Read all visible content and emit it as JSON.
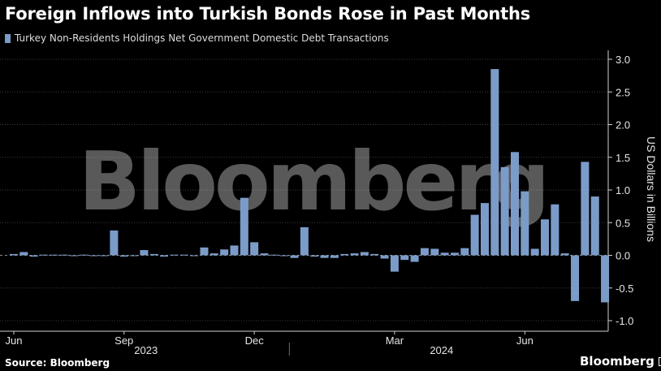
{
  "title": "Foreign Inflows into Turkish Bonds Rose in Past Months",
  "legend": {
    "label": "Turkey Non-Residents Holdings Net Government Domestic Debt Transactions",
    "color": "#7b9cc8"
  },
  "footer": {
    "source": "Source: Bloomberg"
  },
  "brand": {
    "name": "Bloomberg",
    "watermark": "Bloomberg"
  },
  "chart_data": {
    "type": "bar",
    "ylabel": "US Dollars in Billions",
    "ylim": [
      -1.0,
      3.0
    ],
    "yticks": [
      3.0,
      2.5,
      2.0,
      1.5,
      1.0,
      0.5,
      0.0,
      -0.5,
      -1.0
    ],
    "ytick_labels": [
      "3.0",
      "2.5",
      "2.0",
      "1.5",
      "1.0",
      "0.5",
      "0.0",
      "-0.5",
      "-1.0"
    ],
    "x_month_labels": [
      {
        "label": "Jun",
        "index": 0
      },
      {
        "label": "Sep",
        "index": 11
      },
      {
        "label": "Dec",
        "index": 24
      },
      {
        "label": "Mar",
        "index": 38
      },
      {
        "label": "Jun",
        "index": 51
      }
    ],
    "x_year_labels": [
      {
        "label": "2023",
        "from": 0,
        "to": 28
      },
      {
        "label": "2024",
        "from": 28,
        "to": 59
      }
    ],
    "bar_color": "#7b9cc8",
    "grid": true,
    "legend_position": "top-left",
    "values": [
      0.02,
      0.05,
      -0.02,
      0.01,
      0.01,
      0.01,
      -0.01,
      0.01,
      0.0,
      -0.01,
      0.38,
      -0.02,
      0.0,
      0.08,
      0.02,
      -0.02,
      0.01,
      0.01,
      0.0,
      0.12,
      0.03,
      0.09,
      0.15,
      0.88,
      0.2,
      0.03,
      0.01,
      0.0,
      -0.04,
      0.43,
      -0.02,
      -0.04,
      -0.04,
      0.02,
      0.03,
      0.05,
      0.02,
      -0.05,
      -0.25,
      -0.07,
      -0.1,
      0.11,
      0.1,
      0.04,
      0.04,
      0.11,
      0.62,
      0.8,
      2.85,
      1.35,
      1.58,
      0.98,
      0.1,
      0.55,
      0.78,
      0.03,
      -0.7,
      1.43,
      0.9,
      -0.72
    ]
  }
}
